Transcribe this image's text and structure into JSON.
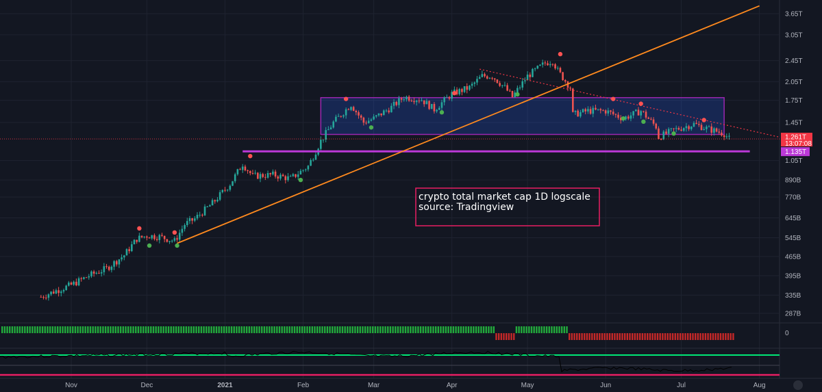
{
  "chart_data": {
    "type": "candlestick",
    "scale": "log",
    "y_unit": "USD total market cap",
    "y_ticks": [
      "3.65T",
      "3.05T",
      "2.45T",
      "2.05T",
      "1.75T",
      "1.45T",
      "1.05T",
      "890B",
      "770B",
      "645B",
      "545B",
      "465B",
      "395B",
      "335B",
      "287B"
    ],
    "x_ticks": [
      "Nov",
      "Dec",
      "2021",
      "Feb",
      "Mar",
      "Apr",
      "May",
      "Jun",
      "Jul",
      "Aug"
    ],
    "close_series": [
      {
        "date": "2020-10-20",
        "value": 330
      },
      {
        "date": "2020-10-25",
        "value": 345
      },
      {
        "date": "2020-11-01",
        "value": 365
      },
      {
        "date": "2020-11-08",
        "value": 395
      },
      {
        "date": "2020-11-15",
        "value": 420
      },
      {
        "date": "2020-11-22",
        "value": 470
      },
      {
        "date": "2020-11-27",
        "value": 540
      },
      {
        "date": "2020-12-01",
        "value": 555
      },
      {
        "date": "2020-12-06",
        "value": 550
      },
      {
        "date": "2020-12-12",
        "value": 530
      },
      {
        "date": "2020-12-16",
        "value": 610
      },
      {
        "date": "2020-12-20",
        "value": 640
      },
      {
        "date": "2020-12-27",
        "value": 730
      },
      {
        "date": "2021-01-03",
        "value": 860
      },
      {
        "date": "2021-01-08",
        "value": 1020
      },
      {
        "date": "2021-01-12",
        "value": 920
      },
      {
        "date": "2021-01-20",
        "value": 930
      },
      {
        "date": "2021-01-27",
        "value": 900
      },
      {
        "date": "2021-02-03",
        "value": 1000
      },
      {
        "date": "2021-02-08",
        "value": 1240
      },
      {
        "date": "2021-02-13",
        "value": 1450
      },
      {
        "date": "2021-02-20",
        "value": 1690
      },
      {
        "date": "2021-02-25",
        "value": 1450
      },
      {
        "date": "2021-03-01",
        "value": 1500
      },
      {
        "date": "2021-03-08",
        "value": 1650
      },
      {
        "date": "2021-03-13",
        "value": 1800
      },
      {
        "date": "2021-03-20",
        "value": 1760
      },
      {
        "date": "2021-03-25",
        "value": 1620
      },
      {
        "date": "2021-04-01",
        "value": 1850
      },
      {
        "date": "2021-04-08",
        "value": 1950
      },
      {
        "date": "2021-04-13",
        "value": 2150
      },
      {
        "date": "2021-04-17",
        "value": 2150
      },
      {
        "date": "2021-04-22",
        "value": 1950
      },
      {
        "date": "2021-04-25",
        "value": 1800
      },
      {
        "date": "2021-05-01",
        "value": 2150
      },
      {
        "date": "2021-05-08",
        "value": 2400
      },
      {
        "date": "2021-05-11",
        "value": 2450
      },
      {
        "date": "2021-05-13",
        "value": 2250
      },
      {
        "date": "2021-05-18",
        "value": 1950
      },
      {
        "date": "2021-05-19",
        "value": 1550
      },
      {
        "date": "2021-05-25",
        "value": 1600
      },
      {
        "date": "2021-06-01",
        "value": 1600
      },
      {
        "date": "2021-06-08",
        "value": 1500
      },
      {
        "date": "2021-06-15",
        "value": 1600
      },
      {
        "date": "2021-06-21",
        "value": 1400
      },
      {
        "date": "2021-06-22",
        "value": 1280
      },
      {
        "date": "2021-06-28",
        "value": 1360
      },
      {
        "date": "2021-07-06",
        "value": 1430
      },
      {
        "date": "2021-07-12",
        "value": 1370
      },
      {
        "date": "2021-07-18",
        "value": 1320
      },
      {
        "date": "2021-07-20",
        "value": 1261
      }
    ],
    "current_price": {
      "label": "1.261T",
      "countdown": "13:07:08",
      "color": "#f23645"
    },
    "level_label": {
      "label": "1.135T",
      "color": "#bb39d7"
    },
    "annotation": {
      "line1": "crypto total market cap 1D logscale",
      "line2": "source: Tradingview"
    },
    "drawings": {
      "consolidation_box": {
        "x0": "2021-02-08",
        "x1": "2021-07-18",
        "y0": 1310,
        "y1": 1790,
        "color": "#9c27b0"
      },
      "support_line": {
        "x0": "2021-01-08",
        "x1": "2021-08-01",
        "y": 1135,
        "color": "#bb39d7"
      },
      "trend_line": {
        "x0": "2020-12-13",
        "y0": 520,
        "x1": "2021-08-01",
        "y1": 3900,
        "color": "#ff8a1e"
      },
      "resistance_line": {
        "x0": "2021-04-12",
        "y0": 2280,
        "x1": "2021-08-01",
        "y1": 1280,
        "color": "#f23645"
      }
    },
    "signals": {
      "sell": [
        {
          "date": "2020-11-28",
          "value": 590
        },
        {
          "date": "2020-12-12",
          "value": 570
        },
        {
          "date": "2021-01-11",
          "value": 1090
        },
        {
          "date": "2021-02-18",
          "value": 1770
        },
        {
          "date": "2021-04-02",
          "value": 1860
        },
        {
          "date": "2021-05-14",
          "value": 2590
        },
        {
          "date": "2021-06-04",
          "value": 1770
        },
        {
          "date": "2021-06-15",
          "value": 1700
        },
        {
          "date": "2021-07-10",
          "value": 1480
        }
      ],
      "buy": [
        {
          "date": "2020-12-02",
          "value": 510
        },
        {
          "date": "2020-12-13",
          "value": 510
        },
        {
          "date": "2021-01-31",
          "value": 890
        },
        {
          "date": "2021-02-28",
          "value": 1390
        },
        {
          "date": "2021-03-28",
          "value": 1580
        },
        {
          "date": "2021-04-27",
          "value": 1840
        },
        {
          "date": "2021-06-08",
          "value": 1500
        },
        {
          "date": "2021-06-16",
          "value": 1460
        },
        {
          "date": "2021-06-28",
          "value": 1320
        }
      ]
    },
    "indicator_1": {
      "zero_label": "0",
      "positive_color": "#22ab3c",
      "negative_color": "#c72828"
    },
    "colors": {
      "up": "#26a69a",
      "down": "#ef5350",
      "background": "#131722"
    }
  }
}
